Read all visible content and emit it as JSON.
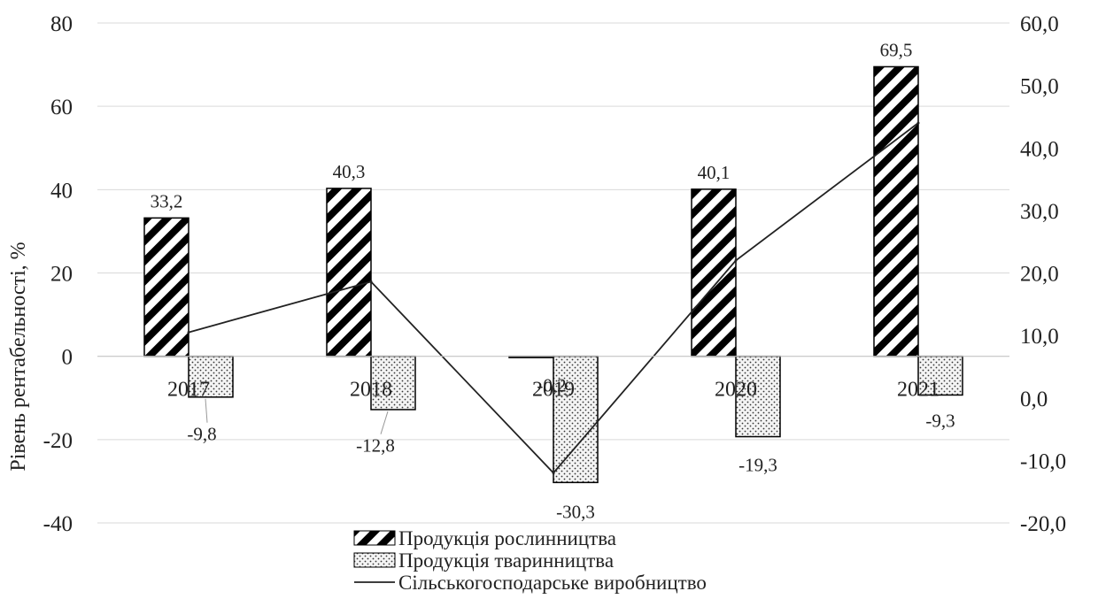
{
  "chart_data": {
    "type": "bar",
    "ylabel": "Рівень рентабельності, %",
    "categories": [
      "2017",
      "2018",
      "2019",
      "2020",
      "2021"
    ],
    "ylim": [
      -40,
      80
    ],
    "yticks": [
      -40,
      -20,
      0,
      20,
      40,
      60,
      80
    ],
    "y2lim": [
      -20,
      60
    ],
    "y2ticks": [
      "-20,0",
      "-10,0",
      "0,0",
      "10,0",
      "20,0",
      "30,0",
      "40,0",
      "50,0",
      "60,0"
    ],
    "grid": true,
    "legend_position": "bottom",
    "series": [
      {
        "name": "Продукція рослинництва",
        "type": "bar",
        "axis": "left",
        "pattern": "diagonal-hatch",
        "values": [
          33.2,
          40.3,
          -0.2,
          40.1,
          69.5
        ],
        "labels": [
          "33,2",
          "40,3",
          "-0,2",
          "40,1",
          "69,5"
        ]
      },
      {
        "name": "Продукція тваринництва",
        "type": "bar",
        "axis": "left",
        "pattern": "dots",
        "values": [
          -9.8,
          -12.8,
          -30.3,
          -19.3,
          -9.3
        ],
        "labels": [
          "-9,8",
          "-12,8",
          "-30,3",
          "-19,3",
          "-9,3"
        ]
      },
      {
        "name": "Сільськогосподарське виробництво",
        "type": "line",
        "axis": "right",
        "values": [
          10.5,
          18.6,
          -12.0,
          22.0,
          44.0
        ]
      }
    ],
    "colors": {
      "grid": "#d9d9d9",
      "bar_edge": "#000000",
      "line": "#222222"
    }
  }
}
